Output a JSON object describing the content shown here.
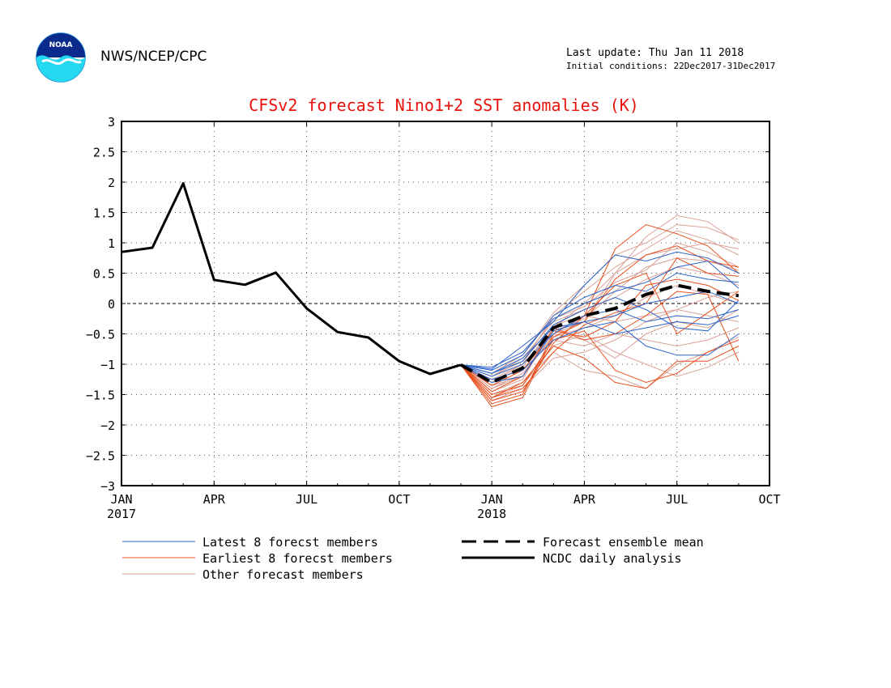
{
  "header": {
    "org": "NWS/NCEP/CPC",
    "last_update": "Last update: Thu Jan 11 2018",
    "initial_conditions": "Initial conditions: 22Dec2017-31Dec2017",
    "logo_text": "NOAA"
  },
  "colors": {
    "latest": "#2a62c8",
    "earliest": "#e8501e",
    "other": "#d9a196",
    "mean": "#000000",
    "analysis": "#000000",
    "title": "#e8120c"
  },
  "chart_data": {
    "type": "line",
    "title": "CFSv2 forecast Nino1+2 SST anomalies (K)",
    "ylim": [
      -3,
      3
    ],
    "yticks": [
      3,
      2.5,
      2,
      1.5,
      1,
      0.5,
      0,
      -0.5,
      -1,
      -1.5,
      -2,
      -2.5,
      -3
    ],
    "ytick_labels": [
      "3",
      "2.5",
      "2",
      "1.5",
      "1",
      "0.5",
      "0",
      "−0.5",
      "−1",
      "−1.5",
      "−2",
      "−2.5",
      "−3"
    ],
    "xlim": [
      "2017-01",
      "2018-10"
    ],
    "xticks": [
      {
        "date": "2017-01",
        "label": "JAN",
        "year": "2017"
      },
      {
        "date": "2017-04",
        "label": "APR",
        "year": ""
      },
      {
        "date": "2017-07",
        "label": "JUL",
        "year": ""
      },
      {
        "date": "2017-10",
        "label": "OCT",
        "year": ""
      },
      {
        "date": "2018-01",
        "label": "JAN",
        "year": "2018"
      },
      {
        "date": "2018-04",
        "label": "APR",
        "year": ""
      },
      {
        "date": "2018-07",
        "label": "JUL",
        "year": ""
      },
      {
        "date": "2018-10",
        "label": "OCT",
        "year": ""
      }
    ],
    "grid": true,
    "zero_line": true,
    "analysis": {
      "name": "NCDC daily analysis",
      "x": [
        "2017-01",
        "2017-02",
        "2017-03",
        "2017-04",
        "2017-05",
        "2017-06",
        "2017-07",
        "2017-08",
        "2017-09",
        "2017-10",
        "2017-11",
        "2017-12"
      ],
      "y": [
        0.85,
        0.92,
        1.98,
        0.39,
        0.31,
        0.51,
        -0.08,
        -0.47,
        -0.56,
        -0.95,
        -1.16,
        -1.01
      ]
    },
    "forecast_months": [
      "2017-12",
      "2018-01",
      "2018-02",
      "2018-03",
      "2018-04",
      "2018-05",
      "2018-06",
      "2018-07",
      "2018-08",
      "2018-09"
    ],
    "ensemble_mean": {
      "name": "Forecast ensemble mean",
      "y": [
        -1.01,
        -1.3,
        -1.06,
        -0.4,
        -0.2,
        -0.08,
        0.15,
        0.3,
        0.2,
        0.13
      ]
    },
    "latest_members": {
      "name": "Latest 8 forecst members",
      "series": [
        [
          -1.01,
          -1.08,
          -0.7,
          -0.3,
          0.3,
          0.8,
          0.7,
          0.85,
          0.75,
          0.5
        ],
        [
          -1.01,
          -1.15,
          -0.9,
          -0.4,
          -0.3,
          -0.2,
          0.0,
          0.1,
          0.2,
          0.0
        ],
        [
          -1.01,
          -1.2,
          -1.0,
          -0.5,
          -0.2,
          -0.1,
          -0.3,
          -0.2,
          -0.25,
          -0.1
        ],
        [
          -1.01,
          -1.1,
          -0.85,
          -0.2,
          0.1,
          0.3,
          0.2,
          0.5,
          0.4,
          0.35
        ],
        [
          -1.01,
          -1.25,
          -1.1,
          -0.6,
          -0.4,
          -0.3,
          -0.7,
          -0.85,
          -0.85,
          -0.5
        ],
        [
          -1.01,
          -1.3,
          -1.2,
          -0.45,
          -0.3,
          -0.5,
          -0.4,
          -0.3,
          -0.35,
          -0.2
        ],
        [
          -1.01,
          -1.15,
          -0.95,
          -0.35,
          -0.1,
          0.1,
          -0.1,
          -0.4,
          -0.45,
          0.05
        ],
        [
          -1.01,
          -1.05,
          -0.8,
          -0.25,
          0.0,
          0.2,
          0.35,
          0.6,
          0.7,
          0.25
        ]
      ]
    },
    "earliest_members": {
      "name": "Earliest 8 forecst members",
      "series": [
        [
          -1.01,
          -1.65,
          -1.5,
          -0.5,
          -0.2,
          0.9,
          1.3,
          1.15,
          0.95,
          0.5
        ],
        [
          -1.01,
          -1.55,
          -1.3,
          -0.7,
          -0.9,
          -1.3,
          -1.4,
          -0.95,
          -0.95,
          -0.7
        ],
        [
          -1.01,
          -1.7,
          -1.55,
          -0.55,
          -0.3,
          0.4,
          0.8,
          0.95,
          0.7,
          0.6
        ],
        [
          -1.01,
          -1.45,
          -1.2,
          -0.4,
          -0.6,
          -0.5,
          -0.2,
          0.2,
          0.15,
          -0.95
        ],
        [
          -1.01,
          -1.5,
          -1.35,
          -0.6,
          -0.45,
          -1.1,
          -1.3,
          -1.15,
          -0.8,
          -0.6
        ],
        [
          -1.01,
          -1.6,
          -1.45,
          -0.65,
          -0.2,
          0.3,
          0.5,
          -0.5,
          -0.15,
          0.2
        ],
        [
          -1.01,
          -1.35,
          -1.1,
          -0.45,
          -0.55,
          -0.3,
          0.3,
          0.4,
          0.3,
          0.05
        ],
        [
          -1.01,
          -1.55,
          -1.4,
          -0.8,
          -0.35,
          -0.15,
          0.0,
          0.75,
          0.5,
          0.45
        ]
      ]
    },
    "other_members": {
      "name": "Other forecast members",
      "series": [
        [
          -1.01,
          -1.4,
          -1.2,
          -0.5,
          -0.3,
          0.5,
          1.1,
          1.45,
          1.35,
          1.0
        ],
        [
          -1.01,
          -1.25,
          -1.0,
          -0.2,
          0.2,
          0.6,
          0.9,
          1.2,
          1.05,
          0.8
        ],
        [
          -1.01,
          -1.5,
          -1.3,
          -0.8,
          -1.1,
          -1.2,
          -1.4,
          -1.0,
          -0.8,
          -0.55
        ],
        [
          -1.01,
          -1.2,
          -0.9,
          -0.3,
          -0.1,
          0.1,
          0.4,
          0.6,
          0.5,
          0.3
        ],
        [
          -1.01,
          -1.35,
          -1.1,
          -0.6,
          -0.7,
          -0.5,
          -0.6,
          -0.7,
          -0.6,
          -0.4
        ],
        [
          -1.01,
          -1.45,
          -1.25,
          -0.4,
          0.0,
          0.5,
          0.8,
          0.9,
          1.0,
          0.9
        ],
        [
          -1.01,
          -1.3,
          -1.05,
          -0.35,
          -0.2,
          -0.3,
          -0.2,
          -0.1,
          0.1,
          0.2
        ],
        [
          -1.01,
          -1.55,
          -1.35,
          -0.7,
          -0.5,
          -0.8,
          -1.0,
          -1.2,
          -1.05,
          -0.8
        ],
        [
          -1.01,
          -1.15,
          -0.85,
          -0.15,
          0.3,
          0.8,
          1.0,
          1.3,
          1.25,
          1.05
        ],
        [
          -1.01,
          -1.4,
          -1.15,
          -0.55,
          -0.4,
          -0.2,
          0.1,
          0.3,
          0.15,
          0.0
        ],
        [
          -1.01,
          -1.3,
          -1.0,
          -0.45,
          -0.25,
          0.2,
          0.6,
          0.75,
          0.7,
          0.55
        ],
        [
          -1.01,
          -1.6,
          -1.4,
          -0.9,
          -0.8,
          -0.6,
          -0.3,
          -0.1,
          -0.2,
          -0.3
        ],
        [
          -1.01,
          -1.2,
          -0.95,
          -0.25,
          -0.05,
          0.35,
          0.55,
          1.0,
          0.85,
          0.6
        ],
        [
          -1.01,
          -1.35,
          -1.2,
          -0.5,
          -0.6,
          -0.9,
          -0.5,
          -0.3,
          -0.4,
          -0.1
        ]
      ]
    }
  }
}
